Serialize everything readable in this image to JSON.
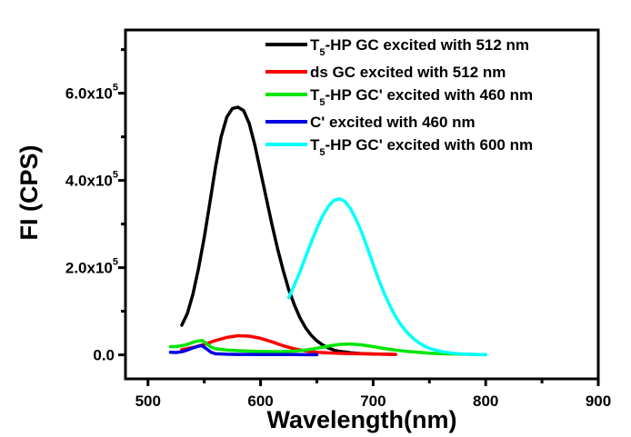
{
  "chart_data": {
    "type": "line",
    "title": "",
    "xlabel": "Wavelength(nm)",
    "ylabel": "FI (CPS)",
    "xlim": [
      480,
      900
    ],
    "ylim": [
      -55000,
      745000
    ],
    "x_ticks": [
      500,
      600,
      700,
      800,
      900
    ],
    "x_tick_labels": [
      "500",
      "600",
      "700",
      "800",
      "900"
    ],
    "y_ticks": [
      0,
      200000,
      400000,
      600000
    ],
    "y_tick_labels": [
      {
        "mantissa": "0.0",
        "exp": ""
      },
      {
        "mantissa": "2.0x10",
        "exp": "5"
      },
      {
        "mantissa": "4.0x10",
        "exp": "5"
      },
      {
        "mantissa": "6.0x10",
        "exp": "5"
      }
    ],
    "grid": false,
    "legend_position": "top-right",
    "series": [
      {
        "name": "T5-HP GC excited with 512 nm",
        "label_main": "T",
        "label_sub": "5",
        "label_rest": "-HP GC excited with 512 nm",
        "color": "#000000",
        "x": [
          530,
          535,
          540,
          545,
          550,
          555,
          560,
          565,
          570,
          575,
          580,
          585,
          590,
          595,
          600,
          605,
          610,
          615,
          620,
          625,
          630,
          635,
          640,
          645,
          650,
          655,
          660,
          665,
          670,
          680,
          690,
          700,
          710,
          720
        ],
        "y": [
          68000,
          95000,
          140000,
          200000,
          270000,
          350000,
          430000,
          500000,
          545000,
          565000,
          568000,
          560000,
          530000,
          480000,
          420000,
          360000,
          300000,
          245000,
          195000,
          150000,
          115000,
          85000,
          62000,
          45000,
          32000,
          23000,
          16000,
          11000,
          8000,
          5000,
          3000,
          2000,
          1500,
          1000
        ]
      },
      {
        "name": "ds GC excited with 512 nm",
        "label_main": "ds GC excited with 512 nm",
        "label_sub": "",
        "label_rest": "",
        "color": "#ff0000",
        "x": [
          530,
          540,
          550,
          560,
          570,
          580,
          590,
          600,
          610,
          620,
          630,
          640,
          650,
          660,
          670,
          680,
          690,
          700,
          710,
          720
        ],
        "y": [
          12000,
          17000,
          24000,
          33000,
          40000,
          44000,
          43000,
          38000,
          30000,
          21000,
          14000,
          9000,
          6000,
          4500,
          3500,
          3000,
          2500,
          2000,
          1500,
          1000
        ]
      },
      {
        "name": "T5-HP GC' excited with 460 nm",
        "label_main": "T",
        "label_sub": "5",
        "label_rest": "-HP GC' excited with 460 nm",
        "color": "#00e600",
        "x": [
          520,
          525,
          530,
          535,
          540,
          545,
          548,
          552,
          556,
          560,
          570,
          580,
          590,
          600,
          610,
          620,
          630,
          640,
          650,
          660,
          670,
          680,
          690,
          700,
          710,
          720,
          730,
          740,
          750,
          760,
          770,
          780,
          790,
          800
        ],
        "y": [
          19000,
          19000,
          21000,
          24000,
          29000,
          32000,
          33000,
          26000,
          18000,
          14000,
          11000,
          9500,
          8500,
          8000,
          7500,
          7500,
          8500,
          11000,
          15000,
          20000,
          24000,
          25000,
          23000,
          19000,
          14500,
          11000,
          8000,
          6000,
          4000,
          3000,
          2000,
          1500,
          1000,
          500
        ]
      },
      {
        "name": "C' excited with 460 nm",
        "label_main": "C' excited with 460 nm",
        "label_sub": "",
        "label_rest": "",
        "color": "#0000e0",
        "x": [
          520,
          525,
          530,
          535,
          540,
          545,
          548,
          552,
          556,
          560,
          570,
          580,
          590,
          600,
          610,
          620,
          630,
          640,
          650
        ],
        "y": [
          6000,
          5500,
          7000,
          11000,
          16000,
          20000,
          21000,
          14000,
          6000,
          2500,
          1500,
          1000,
          1000,
          800,
          800,
          600,
          600,
          500,
          500
        ]
      },
      {
        "name": "T5-HP GC' excited with 600 nm",
        "label_main": "T",
        "label_sub": "5",
        "label_rest": "-HP GC' excited with 600 nm",
        "color": "#00ffff",
        "x": [
          625,
          630,
          635,
          640,
          645,
          650,
          655,
          660,
          665,
          670,
          675,
          680,
          685,
          690,
          695,
          700,
          705,
          710,
          715,
          720,
          725,
          730,
          735,
          740,
          745,
          750,
          760,
          770,
          780,
          790,
          800
        ],
        "y": [
          131000,
          160000,
          190000,
          225000,
          258000,
          290000,
          318000,
          340000,
          354000,
          358000,
          352000,
          335000,
          310000,
          280000,
          245000,
          208000,
          172000,
          140000,
          112000,
          88000,
          68000,
          52000,
          39000,
          29000,
          21000,
          15000,
          8000,
          4000,
          2000,
          1000,
          500
        ]
      }
    ]
  }
}
